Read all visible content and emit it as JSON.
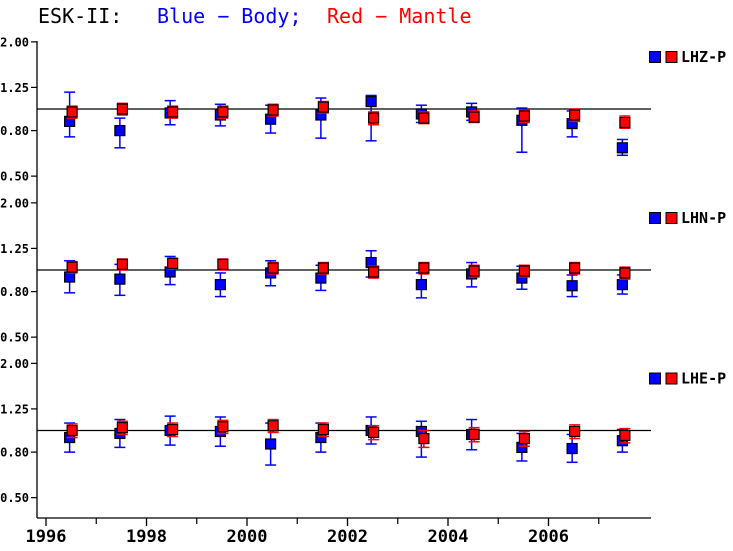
{
  "title": {
    "station": "ESK-II:",
    "body_label": "Blue − Body;",
    "mantle_label": "Red − Mantle"
  },
  "colors": {
    "body": "#0000ff",
    "mantle": "#ff0000",
    "axis": "#000000",
    "background": "#ffffff"
  },
  "y_axis": {
    "scale": "log",
    "tick_labels": [
      "2.00",
      "1.25",
      "0.80",
      "0.50"
    ],
    "tick_values": [
      2.0,
      1.25,
      0.8,
      0.5
    ],
    "reference_value": 1.0,
    "range": [
      0.5,
      2.0
    ]
  },
  "x_axis": {
    "major_tick_years": [
      1996,
      1998,
      2000,
      2002,
      2004,
      2006
    ],
    "major_tick_labels": [
      "1996",
      "1998",
      "2000",
      "2002",
      "2004",
      "2006"
    ],
    "minor_tick_years": [
      1997,
      1999,
      2001,
      2003,
      2005,
      2007
    ],
    "range": [
      1995.82,
      2008.04
    ]
  },
  "chart_data": [
    {
      "type": "scatter",
      "name": "LHZ-P",
      "x": [
        1996.5,
        1997.5,
        1998.5,
        1999.5,
        2000.5,
        2001.5,
        2002.5,
        2003.5,
        2004.5,
        2005.5,
        2006.5,
        2007.5
      ],
      "series": [
        {
          "name": "Body",
          "color_key": "body",
          "values": [
            0.88,
            0.8,
            0.96,
            0.94,
            0.9,
            0.94,
            1.08,
            0.95,
            0.97,
            0.89,
            0.86,
            0.67
          ],
          "err_lo": [
            0.75,
            0.67,
            0.85,
            0.84,
            0.78,
            0.74,
            0.72,
            0.87,
            0.89,
            0.64,
            0.75,
            0.62
          ],
          "err_hi": [
            1.19,
            0.91,
            1.09,
            1.05,
            1.04,
            1.12,
            1.15,
            1.04,
            1.06,
            1.01,
            0.98,
            0.73
          ]
        },
        {
          "name": "Mantle",
          "color_key": "mantle",
          "values": [
            0.97,
            1.0,
            0.97,
            0.97,
            0.99,
            1.02,
            0.91,
            0.91,
            0.92,
            0.93,
            0.94,
            0.87
          ],
          "err_lo": [
            0.91,
            0.94,
            0.91,
            0.91,
            0.93,
            0.96,
            0.85,
            0.86,
            0.87,
            0.87,
            0.88,
            0.82
          ],
          "err_hi": [
            1.03,
            1.06,
            1.03,
            1.03,
            1.05,
            1.08,
            0.97,
            0.97,
            0.98,
            0.99,
            1.0,
            0.93
          ]
        }
      ]
    },
    {
      "type": "scatter",
      "name": "LHN-P",
      "x": [
        1996.5,
        1997.5,
        1998.5,
        1999.5,
        2000.5,
        2001.5,
        2002.5,
        2003.5,
        2004.5,
        2005.5,
        2006.5,
        2007.5
      ],
      "series": [
        {
          "name": "Body",
          "color_key": "body",
          "values": [
            0.93,
            0.91,
            0.98,
            0.86,
            0.97,
            0.92,
            1.08,
            0.86,
            0.96,
            0.92,
            0.85,
            0.86
          ],
          "err_lo": [
            0.79,
            0.77,
            0.86,
            0.76,
            0.85,
            0.81,
            0.93,
            0.75,
            0.84,
            0.82,
            0.76,
            0.78
          ],
          "err_hi": [
            1.1,
            1.06,
            1.15,
            0.97,
            1.1,
            1.05,
            1.22,
            0.97,
            1.08,
            1.04,
            0.95,
            0.95
          ]
        },
        {
          "name": "Mantle",
          "color_key": "mantle",
          "values": [
            1.03,
            1.06,
            1.07,
            1.06,
            1.02,
            1.02,
            0.98,
            1.02,
            0.99,
            0.99,
            1.02,
            0.97
          ],
          "err_lo": [
            0.97,
            1.0,
            1.01,
            1.0,
            0.96,
            0.96,
            0.92,
            0.96,
            0.93,
            0.93,
            0.96,
            0.91
          ],
          "err_hi": [
            1.09,
            1.12,
            1.13,
            1.12,
            1.08,
            1.08,
            1.04,
            1.08,
            1.05,
            1.05,
            1.08,
            1.03
          ]
        }
      ]
    },
    {
      "type": "scatter",
      "name": "LHE-P",
      "x": [
        1996.5,
        1997.5,
        1998.5,
        1999.5,
        2000.5,
        2001.5,
        2002.5,
        2003.5,
        2004.5,
        2005.5,
        2006.5,
        2007.5
      ],
      "series": [
        {
          "name": "Body",
          "color_key": "body",
          "values": [
            0.93,
            0.97,
            1.0,
            0.99,
            0.87,
            0.93,
            1.0,
            0.99,
            0.96,
            0.84,
            0.83,
            0.9
          ],
          "err_lo": [
            0.8,
            0.84,
            0.86,
            0.85,
            0.7,
            0.8,
            0.87,
            0.76,
            0.82,
            0.73,
            0.72,
            0.8
          ],
          "err_hi": [
            1.08,
            1.12,
            1.16,
            1.15,
            1.08,
            1.08,
            1.15,
            1.1,
            1.12,
            0.97,
            0.96,
            1.01
          ]
        },
        {
          "name": "Mantle",
          "color_key": "mantle",
          "values": [
            1.0,
            1.03,
            1.01,
            1.04,
            1.05,
            1.01,
            0.98,
            0.92,
            0.96,
            0.92,
            0.99,
            0.95
          ],
          "err_lo": [
            0.93,
            0.96,
            0.94,
            0.97,
            0.98,
            0.94,
            0.91,
            0.84,
            0.89,
            0.85,
            0.92,
            0.88
          ],
          "err_hi": [
            1.07,
            1.1,
            1.08,
            1.11,
            1.12,
            1.08,
            1.05,
            1.0,
            1.03,
            0.99,
            1.06,
            1.02
          ]
        }
      ]
    }
  ]
}
